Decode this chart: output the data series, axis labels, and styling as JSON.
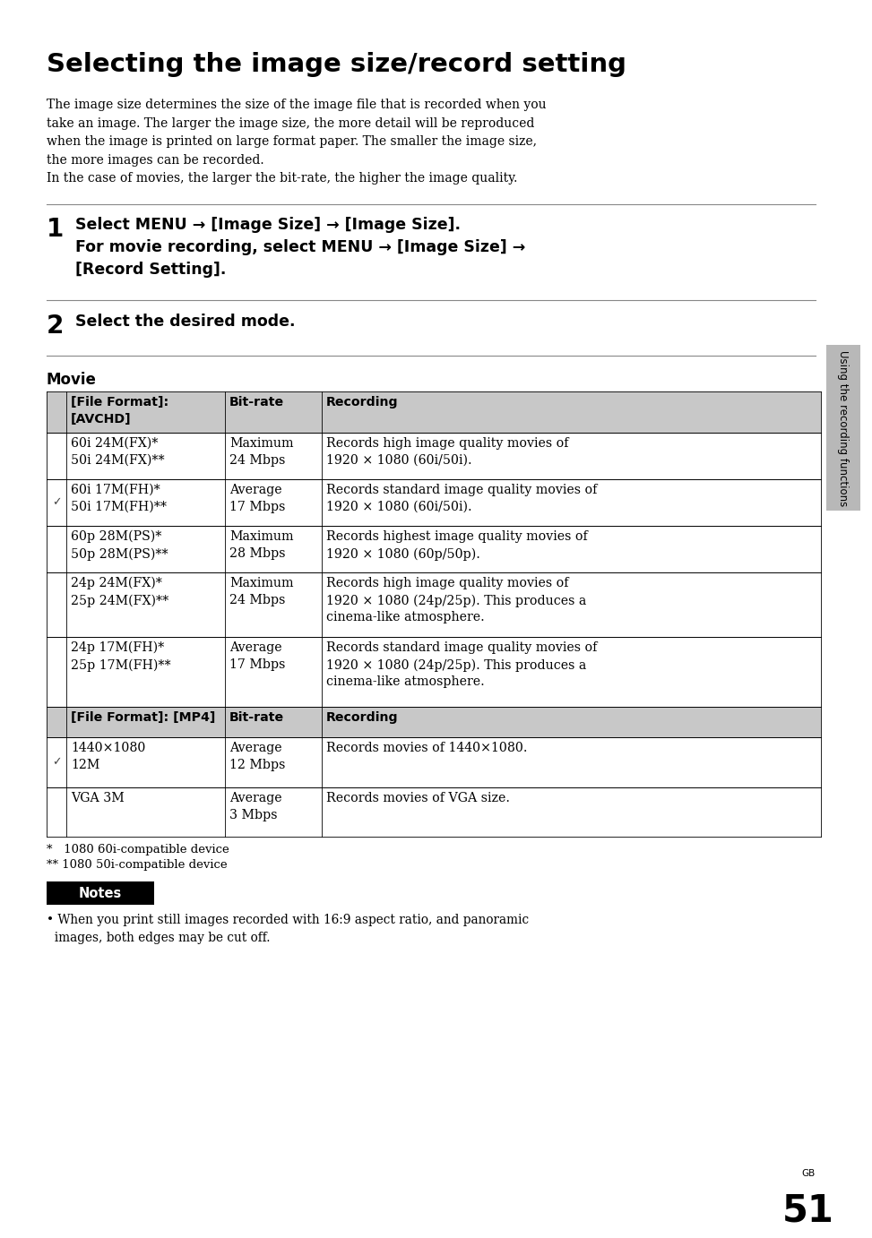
{
  "title": "Selecting the image size/record setting",
  "intro_text": "The image size determines the size of the image file that is recorded when you\ntake an image. The larger the image size, the more detail will be reproduced\nwhen the image is printed on large format paper. The smaller the image size,\nthe more images can be recorded.\nIn the case of movies, the larger the bit-rate, the higher the image quality.",
  "step1_num": "1",
  "step1_text": "Select MENU → [Image Size] → [Image Size].\nFor movie recording, select MENU → [Image Size] →\n[Record Setting].",
  "step2_num": "2",
  "step2_text": "Select the desired mode.",
  "movie_label": "Movie",
  "table_header1_col1": "[File Format]:\n[AVCHD]",
  "table_header1_col2": "Bit-rate",
  "table_header1_col3": "Recording",
  "table_rows_avchd": [
    {
      "check": false,
      "col1": "60i 24M(FX)*\n50i 24M(FX)**",
      "col2": "Maximum\n24 Mbps",
      "col3": "Records high image quality movies of\n1920 × 1080 (60i/50i)."
    },
    {
      "check": true,
      "col1": "60i 17M(FH)*\n50i 17M(FH)**",
      "col2": "Average\n17 Mbps",
      "col3": "Records standard image quality movies of\n1920 × 1080 (60i/50i)."
    },
    {
      "check": false,
      "col1": "60p 28M(PS)*\n50p 28M(PS)**",
      "col2": "Maximum\n28 Mbps",
      "col3": "Records highest image quality movies of\n1920 × 1080 (60p/50p)."
    },
    {
      "check": false,
      "col1": "24p 24M(FX)*\n25p 24M(FX)**",
      "col2": "Maximum\n24 Mbps",
      "col3": "Records high image quality movies of\n1920 × 1080 (24p/25p). This produces a\ncinema-like atmosphere."
    },
    {
      "check": false,
      "col1": "24p 17M(FH)*\n25p 17M(FH)**",
      "col2": "Average\n17 Mbps",
      "col3": "Records standard image quality movies of\n1920 × 1080 (24p/25p). This produces a\ncinema-like atmosphere."
    }
  ],
  "table_header2_col1": "[File Format]: [MP4]",
  "table_header2_col2": "Bit-rate",
  "table_header2_col3": "Recording",
  "table_rows_mp4": [
    {
      "check": true,
      "col1": "1440×1080\n12M",
      "col2": "Average\n12 Mbps",
      "col3": "Records movies of 1440×1080."
    },
    {
      "check": false,
      "col1": "VGA 3M",
      "col2": "Average\n3 Mbps",
      "col3": "Records movies of VGA size."
    }
  ],
  "footnote1": "*   1080 60i-compatible device",
  "footnote2": "** 1080 50i-compatible device",
  "notes_label": "Notes",
  "notes_text": "• When you print still images recorded with 16:9 aspect ratio, and panoramic\n  images, both edges may be cut off.",
  "page_label": "GB",
  "page_num": "51",
  "sidebar_text": "Using the recording functions",
  "bg_color": "#ffffff",
  "table_header_bg": "#c8c8c8",
  "table_border_color": "#000000",
  "sidebar_bg": "#b8b8b8"
}
